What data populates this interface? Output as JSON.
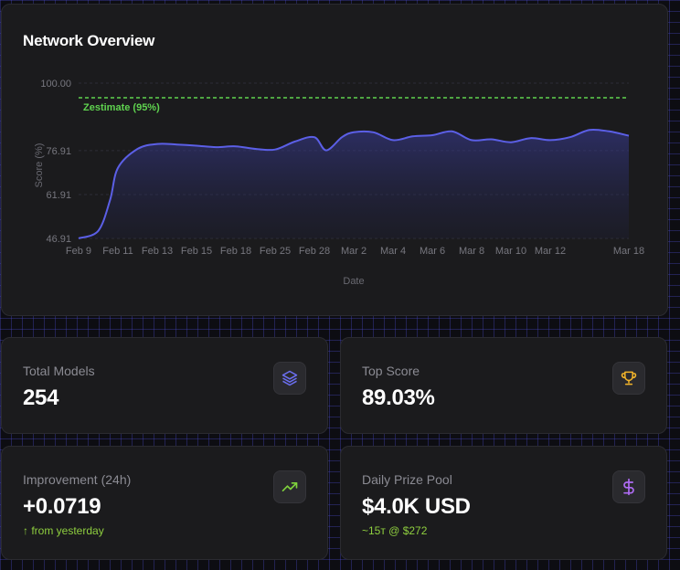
{
  "overview": {
    "title": "Network Overview"
  },
  "chart_data": {
    "type": "area",
    "xlabel": "Date",
    "ylabel": "Score (%)",
    "ylim": [
      46.91,
      100.0
    ],
    "y_ticks": [
      "100.00",
      "76.91",
      "61.91",
      "46.91"
    ],
    "y_tick_values": [
      100.0,
      76.91,
      61.91,
      46.91
    ],
    "x_ticks": [
      "Feb 9",
      "Feb 11",
      "Feb 13",
      "Feb 15",
      "Feb 18",
      "Feb 25",
      "Feb 28",
      "Mar 2",
      "Mar 4",
      "Mar 6",
      "Mar 8",
      "Mar 10",
      "Mar 12",
      "Mar 18"
    ],
    "x_tick_index": [
      0,
      1,
      2,
      3,
      4,
      5,
      6,
      7,
      8,
      9,
      10,
      11,
      12,
      14
    ],
    "reference_line": {
      "label": "Zestimate (95%)",
      "value": 95,
      "color": "#5fd34f"
    },
    "series": [
      {
        "color": "#5b5fe6",
        "points": [
          [
            0,
            46.9
          ],
          [
            0.5,
            49.5
          ],
          [
            0.8,
            60
          ],
          [
            1,
            71
          ],
          [
            1.5,
            77.5
          ],
          [
            2,
            79.2
          ],
          [
            2.5,
            79
          ],
          [
            3,
            78.6
          ],
          [
            3.5,
            78.1
          ],
          [
            4,
            78.4
          ],
          [
            4.5,
            77.5
          ],
          [
            5,
            77.3
          ],
          [
            5.5,
            80
          ],
          [
            6,
            81.5
          ],
          [
            6.3,
            77
          ],
          [
            6.7,
            81.5
          ],
          [
            7,
            83.2
          ],
          [
            7.5,
            83.2
          ],
          [
            8,
            80.5
          ],
          [
            8.5,
            81.8
          ],
          [
            9,
            82.2
          ],
          [
            9.5,
            83.5
          ],
          [
            10,
            80.5
          ],
          [
            10.5,
            80.8
          ],
          [
            11,
            79.8
          ],
          [
            11.5,
            81.2
          ],
          [
            12,
            80.5
          ],
          [
            12.5,
            81.5
          ],
          [
            13,
            84
          ],
          [
            13.5,
            83.5
          ],
          [
            14,
            82
          ]
        ]
      }
    ]
  },
  "stats": [
    {
      "label": "Total Models",
      "value": "254",
      "icon": "layers-icon",
      "icon_color": "#6b6ff0"
    },
    {
      "label": "Top Score",
      "value": "89.03%",
      "icon": "trophy-icon",
      "icon_color": "#f3b52a"
    },
    {
      "label": "Improvement (24h)",
      "value": "+0.0719",
      "sub": "↑ from yesterday",
      "icon": "trending-up-icon",
      "icon_color": "#7fd23c"
    },
    {
      "label": "Daily Prize Pool",
      "value": "$4.0K USD",
      "sub": "~15т @ $272",
      "icon": "dollar-icon",
      "icon_color": "#b06cf5"
    }
  ],
  "colors": {
    "accent": "#5b5fe6",
    "positive": "#8fcf3f",
    "card_bg": "#1b1b1d"
  }
}
